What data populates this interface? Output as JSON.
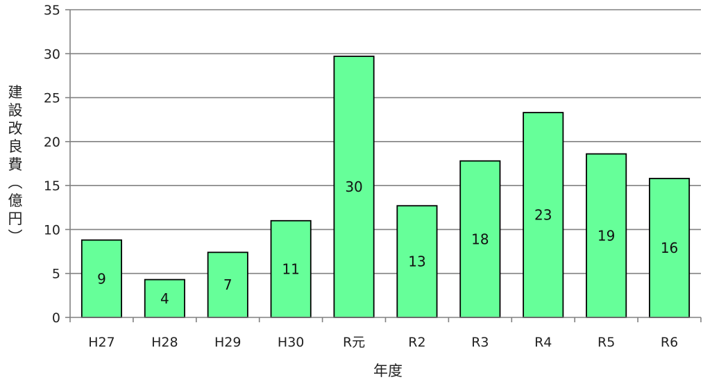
{
  "chart_data": {
    "type": "bar",
    "title": "",
    "xlabel": "年度",
    "ylabel_chars": [
      "建",
      "設",
      "改",
      "良",
      "費",
      "︵",
      "億",
      "円",
      "︶"
    ],
    "categories": [
      "H27",
      "H28",
      "H29",
      "H30",
      "R元",
      "R2",
      "R3",
      "R4",
      "R5",
      "R6"
    ],
    "values": [
      8.8,
      4.3,
      7.4,
      11.0,
      29.7,
      12.7,
      17.8,
      23.3,
      18.6,
      15.8
    ],
    "data_labels": [
      "9",
      "4",
      "7",
      "11",
      "30",
      "13",
      "18",
      "23",
      "19",
      "16"
    ],
    "ylim": [
      0,
      35
    ],
    "yticks": [
      "0",
      "5",
      "10",
      "15",
      "20",
      "25",
      "30",
      "35"
    ],
    "grid": true,
    "legend": "none",
    "bar_color": "#66ff99",
    "bar_edge_color": "#000000",
    "grid_color": "#808080"
  }
}
